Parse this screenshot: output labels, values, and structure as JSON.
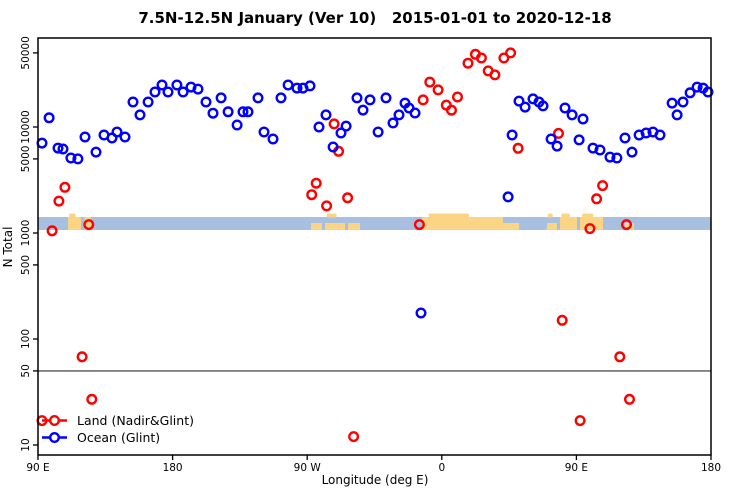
{
  "title": "7.5N-12.5N January (Ver 10)   2015-01-01 to 2020-12-18",
  "chart_data": {
    "type": "scatter",
    "title": "7.5N-12.5N January (Ver 10)   2015-01-01 to 2020-12-18",
    "xlabel": "Longitude (deg E)",
    "ylabel": "N Total",
    "y_scale": "log10",
    "x_axis": {
      "note": "longitude axis wraps: 90E eastward to 180 on second cycle",
      "range_lon_plot": [
        90,
        540
      ],
      "ticks": [
        {
          "lon": 90,
          "label": "90 E"
        },
        {
          "lon": 180,
          "label": "180"
        },
        {
          "lon": 270,
          "label": "90 W"
        },
        {
          "lon": 360,
          "label": "0"
        },
        {
          "lon": 450,
          "label": "90 E"
        },
        {
          "lon": 540,
          "label": "180"
        }
      ]
    },
    "y_axis": {
      "range": [
        8,
        70000
      ],
      "ticks": [
        {
          "value": 10,
          "label": "10"
        },
        {
          "value": 50,
          "label": "50"
        },
        {
          "value": 100,
          "label": "100"
        },
        {
          "value": 500,
          "label": "500"
        },
        {
          "value": 1000,
          "label": "1000"
        },
        {
          "value": 5000,
          "label": "5000"
        },
        {
          "value": 10000,
          "label": "10000"
        },
        {
          "value": 50000,
          "label": "50000"
        }
      ]
    },
    "reference_line": {
      "value": 50,
      "color": "#555555"
    },
    "map_strip": {
      "ocean_color": "#a9bfdf",
      "land_color": "#fbd584",
      "value_band": [
        1070,
        1420
      ],
      "land_segments": [
        {
          "from": 110.1,
          "to": 118.7,
          "style": "full",
          "bump": true
        },
        {
          "from": 121.1,
          "to": 125.4,
          "style": "full",
          "bump": false
        },
        {
          "from": 272.5,
          "to": 279.9,
          "style": "low",
          "bump": false
        },
        {
          "from": 281.9,
          "to": 295.3,
          "style": "low",
          "bump": true
        },
        {
          "from": 297.3,
          "to": 305.3,
          "style": "low",
          "bump": false
        },
        {
          "from": 346.8,
          "to": 400.9,
          "style": "full",
          "bump": true
        },
        {
          "from": 400.9,
          "to": 411.6,
          "style": "low",
          "bump": false
        },
        {
          "from": 430.3,
          "to": 437.0,
          "style": "low",
          "bump": true
        },
        {
          "from": 439.0,
          "to": 450.4,
          "style": "full",
          "bump": true
        },
        {
          "from": 452.4,
          "to": 467.8,
          "style": "full",
          "bump": true
        },
        {
          "from": 482.5,
          "to": 488.5,
          "style": "low",
          "bump": false
        }
      ]
    },
    "legend": {
      "position": "bottom-left"
    },
    "series": [
      {
        "name": "Land (Nadir&Glint)",
        "color": "#ff0000",
        "marker": "open-circle",
        "points": [
          [
            92.7,
            17
          ],
          [
            99.4,
            1050
          ],
          [
            104,
            2000
          ],
          [
            108,
            2700
          ],
          [
            119.5,
            68
          ],
          [
            124,
            1200
          ],
          [
            126,
            27
          ],
          [
            273,
            2300
          ],
          [
            276,
            2950
          ],
          [
            283,
            1800
          ],
          [
            288,
            10700
          ],
          [
            291,
            5900
          ],
          [
            297,
            2150
          ],
          [
            301,
            12
          ],
          [
            345,
            1200
          ],
          [
            347.5,
            18000
          ],
          [
            352,
            26500
          ],
          [
            357.5,
            22400
          ],
          [
            363,
            16100
          ],
          [
            366.5,
            14400
          ],
          [
            370.5,
            19200
          ],
          [
            377.5,
            40000
          ],
          [
            382.5,
            48500
          ],
          [
            386.5,
            44800
          ],
          [
            391,
            33800
          ],
          [
            395.5,
            31000
          ],
          [
            401.5,
            44800
          ],
          [
            406,
            50000
          ],
          [
            411,
            6300
          ],
          [
            438,
            8700
          ],
          [
            440.5,
            150
          ],
          [
            452.5,
            17
          ],
          [
            459,
            1100
          ],
          [
            463.5,
            2100
          ],
          [
            467.5,
            2800
          ],
          [
            479,
            68
          ],
          [
            483.5,
            1200
          ],
          [
            485.5,
            27
          ]
        ]
      },
      {
        "name": "Ocean (Glint)",
        "color": "#0000ff",
        "marker": "open-circle",
        "points": [
          [
            92.7,
            7050
          ],
          [
            97.4,
            12200
          ],
          [
            103.4,
            6330
          ],
          [
            106.7,
            6200
          ],
          [
            112,
            5100
          ],
          [
            116.7,
            5000
          ],
          [
            121.4,
            8050
          ],
          [
            128.8,
            5800
          ],
          [
            134.1,
            8400
          ],
          [
            139.5,
            7870
          ],
          [
            142.8,
            8970
          ],
          [
            148.2,
            8050
          ],
          [
            153.5,
            17200
          ],
          [
            158.2,
            13000
          ],
          [
            163.6,
            17200
          ],
          [
            168.2,
            21400
          ],
          [
            172.9,
            24900
          ],
          [
            176.9,
            21400
          ],
          [
            182.9,
            24900
          ],
          [
            187,
            21400
          ],
          [
            192.3,
            23800
          ],
          [
            197,
            22800
          ],
          [
            202.3,
            17200
          ],
          [
            207,
            13500
          ],
          [
            212.4,
            18800
          ],
          [
            217.1,
            13900
          ],
          [
            223.1,
            10450
          ],
          [
            227.1,
            13900
          ],
          [
            230.4,
            13900
          ],
          [
            237.1,
            18800
          ],
          [
            241.1,
            8970
          ],
          [
            247.1,
            7700
          ],
          [
            252.5,
            18800
          ],
          [
            257.2,
            24900
          ],
          [
            263.2,
            23300
          ],
          [
            267.2,
            23300
          ],
          [
            271.9,
            24400
          ],
          [
            277.9,
            10000
          ],
          [
            282.6,
            13000
          ],
          [
            287.3,
            6470
          ],
          [
            292.6,
            8780
          ],
          [
            296,
            10200
          ],
          [
            303.3,
            18800
          ],
          [
            307.3,
            14450
          ],
          [
            312,
            18000
          ],
          [
            317.4,
            8970
          ],
          [
            322.7,
            18800
          ],
          [
            327.4,
            10900
          ],
          [
            331.4,
            13000
          ],
          [
            335.4,
            16800
          ],
          [
            338.1,
            15100
          ],
          [
            342.1,
            13550
          ],
          [
            346.1,
            176
          ],
          [
            404.3,
            2190
          ],
          [
            407,
            8400
          ],
          [
            411.6,
            17550
          ],
          [
            415.7,
            15400
          ],
          [
            421,
            18400
          ],
          [
            425,
            17200
          ],
          [
            427.7,
            15800
          ],
          [
            433.1,
            7700
          ],
          [
            437.1,
            6600
          ],
          [
            442.4,
            15100
          ],
          [
            447.1,
            13000
          ],
          [
            451.8,
            7550
          ],
          [
            454.4,
            11900
          ],
          [
            461.1,
            6330
          ],
          [
            465.8,
            6070
          ],
          [
            472.5,
            5200
          ],
          [
            477.1,
            5100
          ],
          [
            482.5,
            7870
          ],
          [
            487.2,
            5800
          ],
          [
            491.9,
            8400
          ],
          [
            496.6,
            8780
          ],
          [
            501.2,
            8970
          ],
          [
            505.9,
            8400
          ],
          [
            514,
            16800
          ],
          [
            517.3,
            13000
          ],
          [
            521.3,
            17200
          ],
          [
            526,
            21000
          ],
          [
            530.7,
            23800
          ],
          [
            534.7,
            23300
          ],
          [
            538,
            21400
          ]
        ]
      }
    ]
  }
}
